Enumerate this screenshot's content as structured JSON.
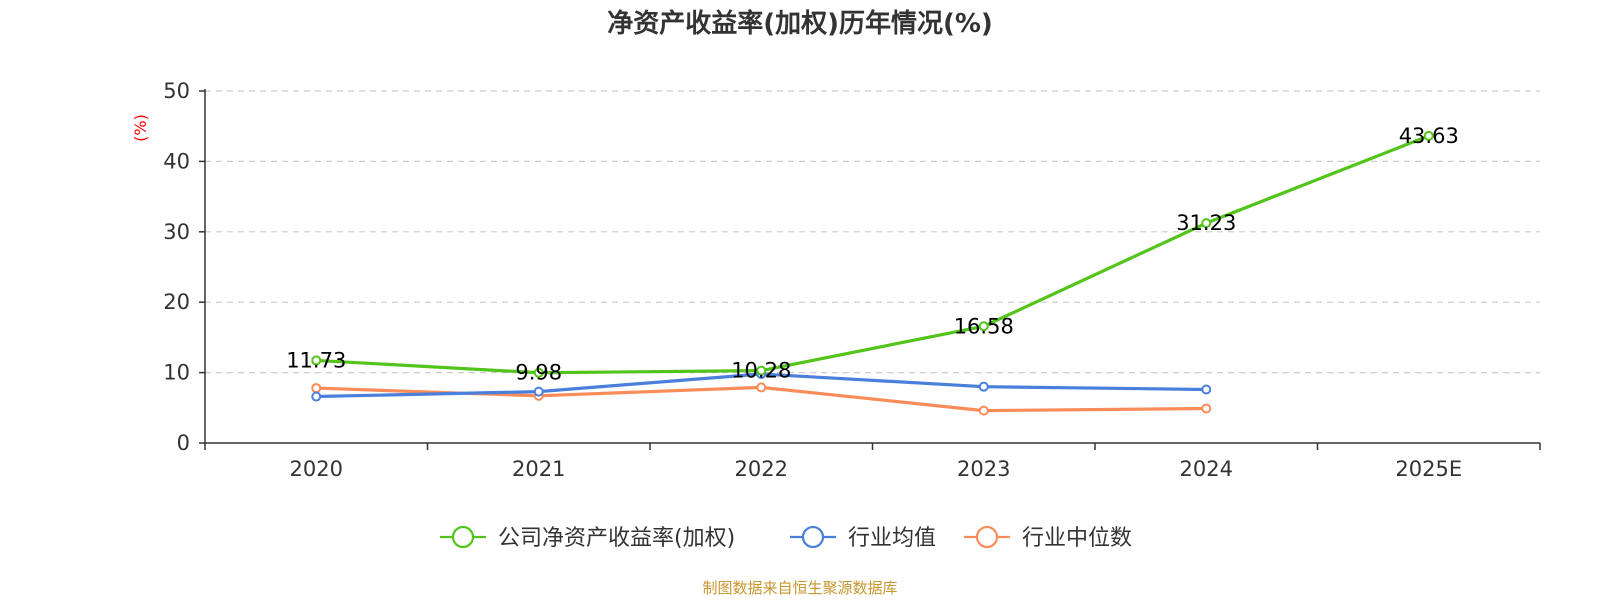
{
  "chart_data": {
    "type": "line",
    "title": "净资产收益率(加权)历年情况(%)",
    "ylabel": "(%)",
    "xlabel": "",
    "categories": [
      "2020",
      "2021",
      "2022",
      "2023",
      "2024",
      "2025E"
    ],
    "ylim": [
      0,
      50
    ],
    "yticks": [
      0,
      10,
      20,
      30,
      40,
      50
    ],
    "grid": true,
    "legend_position": "bottom",
    "series": [
      {
        "name": "公司净资产收益率(加权)",
        "color": "#52c41a",
        "values": [
          11.73,
          9.98,
          10.28,
          16.58,
          31.23,
          43.63
        ],
        "labels": [
          "11.73",
          "9.98",
          "10.28",
          "16.58",
          "31.23",
          "43.63"
        ],
        "show_labels": true
      },
      {
        "name": "行业均值",
        "color": "#4a7fdc",
        "values": [
          6.6,
          7.3,
          9.8,
          8.0,
          7.6,
          null
        ],
        "show_labels": false
      },
      {
        "name": "行业中位数",
        "color": "#fa8c5a",
        "values": [
          7.8,
          6.7,
          7.9,
          4.6,
          4.9,
          null
        ],
        "show_labels": false
      }
    ],
    "source": "制图数据来自恒生聚源数据库"
  }
}
